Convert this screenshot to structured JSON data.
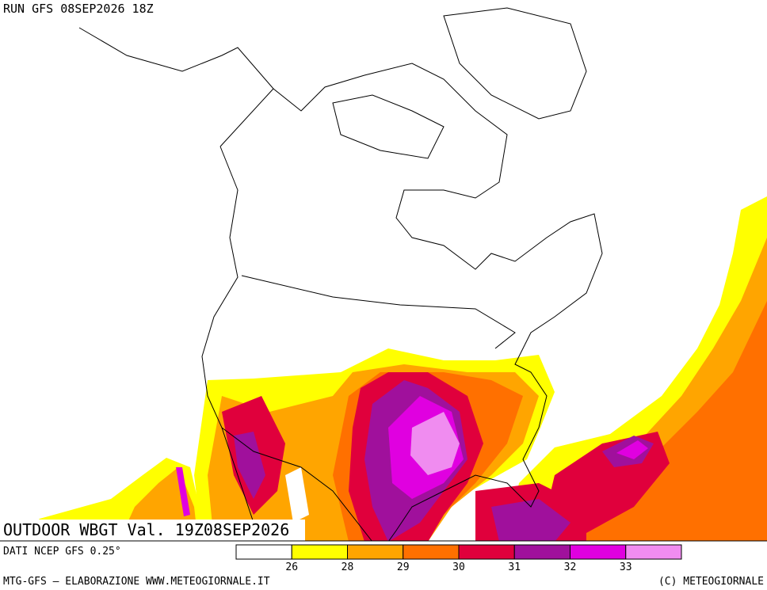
{
  "header": {
    "run": "RUN GFS 08SEP2026 18Z"
  },
  "map_title": "OUTDOOR WBGT Val. 19Z08SEP2026",
  "source": "DATI NCEP GFS 0.25°",
  "footer": {
    "left": "MTG-GFS – ELABORAZIONE WWW.METEOGIORNALE.IT",
    "right": "(C) METEOGIORNALE"
  },
  "legend": {
    "colors": [
      "#ffffff",
      "#ffff00",
      "#ffa500",
      "#ff7000",
      "#e0003c",
      "#a0109c",
      "#e000e0",
      "#f08cf0"
    ],
    "ticks": [
      26,
      28,
      29,
      30,
      31,
      32,
      33
    ]
  }
}
